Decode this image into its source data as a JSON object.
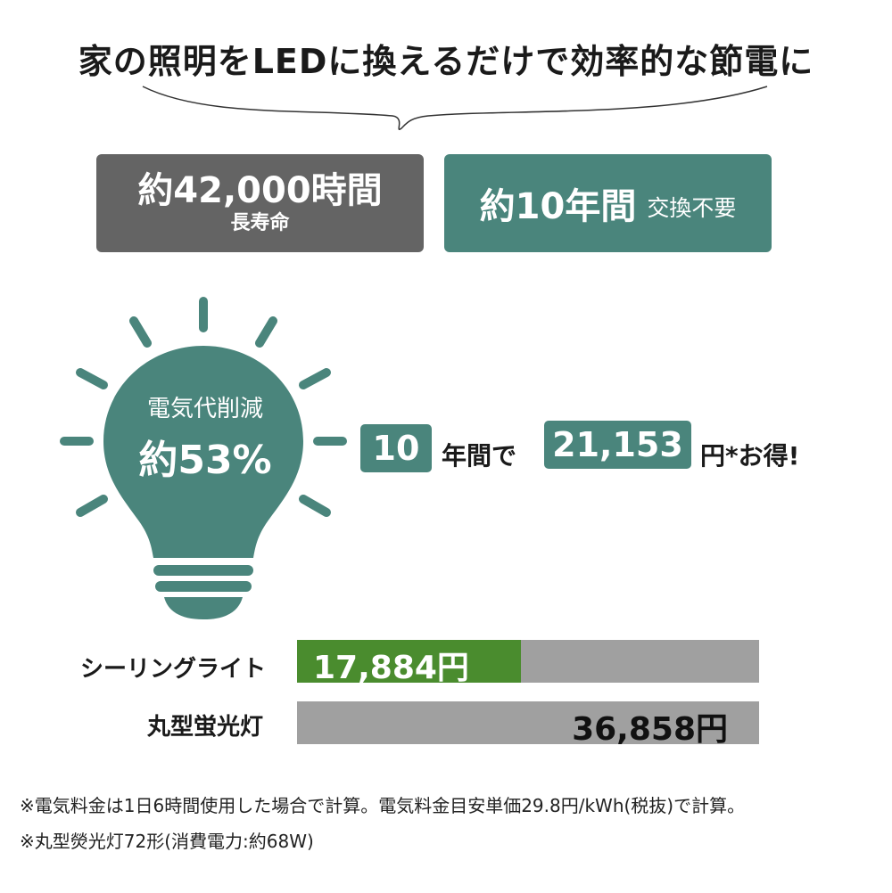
{
  "headline": "家の照明をLEDに換えるだけで効率的な節電に",
  "lifespan": {
    "main": "約42,000時間",
    "sub": "長寿命"
  },
  "replacement": {
    "main": "約10年間",
    "sub": "交換不要"
  },
  "bulb": {
    "label": "電気代削減",
    "value": "約53%"
  },
  "savings": {
    "years": "10",
    "years_suffix": "年間で",
    "amount": "21,153",
    "amount_suffix": "円*お得!"
  },
  "colors": {
    "accent": "#4a857c",
    "gray_box": "#646464",
    "led_bar": "#4a8c2e",
    "bar_track": "#a0a0a0"
  },
  "chart_data": {
    "type": "bar",
    "categories": [
      "シーリングライト",
      "丸型蛍光灯"
    ],
    "values": [
      17884,
      36858
    ],
    "value_labels": [
      "17,884円",
      "36,858円"
    ]
  },
  "notes": [
    "※電気料金は1日6時間使用した場合で計算。電気料金目安単価29.8円/kWh(税抜)で計算。",
    "※丸型熒光灯72形(消費電力:約68W)"
  ]
}
